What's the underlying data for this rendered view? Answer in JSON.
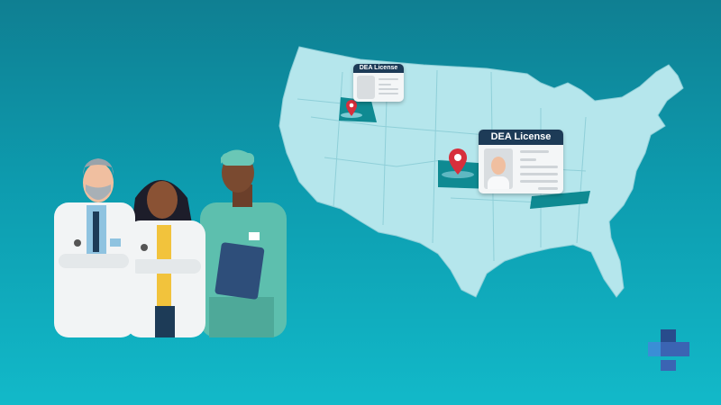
{
  "cards": {
    "small_title": "DEA License",
    "large_title": "DEA License"
  },
  "colors": {
    "background": "#0d9bae",
    "map_fill": "#b5e6ec",
    "highlight_state": "#0f8a92",
    "pin": "#d72f3c",
    "card_header": "#1d3b57"
  },
  "icons": [
    "map-pin-icon",
    "id-card-icon",
    "medical-cross-logo"
  ]
}
